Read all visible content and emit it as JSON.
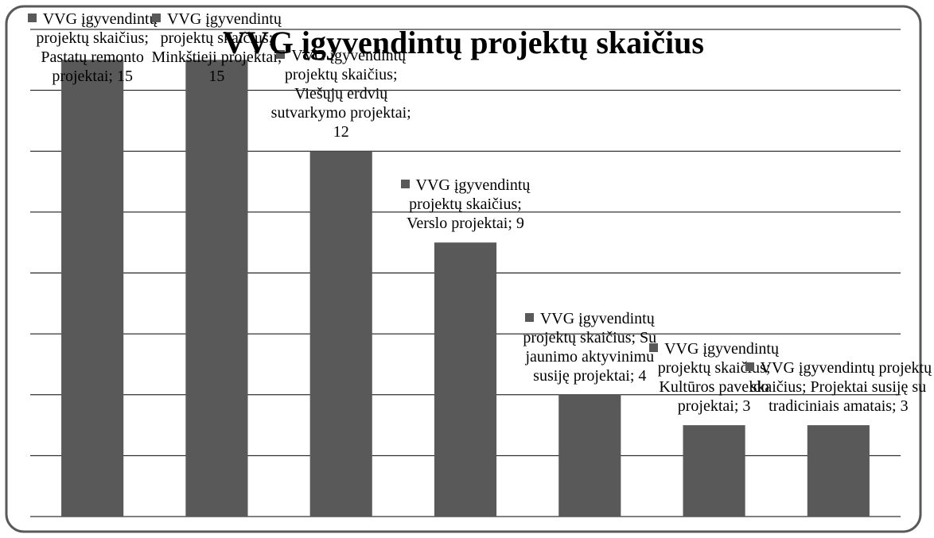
{
  "chart_data": {
    "type": "bar",
    "title": "VVG įgyvendintų projektų skaičius",
    "series": [
      {
        "name": "VVG įgyvendintų projektų skaičius",
        "color": "#595959",
        "values": [
          15,
          15,
          12,
          9,
          4,
          3,
          3
        ],
        "value_labels": [
          "VVG įgyvendintų projektų skaičius; Pastatų remonto projektai; 15",
          "VVG įgyvendintų projektų skaičius; Minkštieji projektai; 15",
          "VVG įgyvendintų projektų skaičius; Viešųjų erdvių sutvarkymo projektai; 12",
          "VVG įgyvendintų projektų skaičius; Verslo projektai; 9",
          "VVG įgyvendintų projektų skaičius; Su jaunimo aktyvinimu susiję projektai; 4",
          "VVG įgyvendintų projektų skaičius; Kultūros paveldo projektai; 3",
          "VVG įgyvendintų projektų skaičius; Projektai susiję su tradiciniais amatais; 3"
        ]
      }
    ],
    "categories": [
      "Pastatų remonto projektai",
      "Minkštieji projektai",
      "Viešųjų erdvių sutvarkymo projektai",
      "Verslo projektai",
      "Su jaunimo aktyvinimu susiję projektai",
      "Kultūros paveldo projektai",
      "Projektai susiję su tradiciniais amatais"
    ],
    "ylim": [
      0,
      16
    ],
    "yticks": [
      0,
      2,
      4,
      6,
      8,
      10,
      12,
      14,
      16
    ],
    "grid": true
  }
}
